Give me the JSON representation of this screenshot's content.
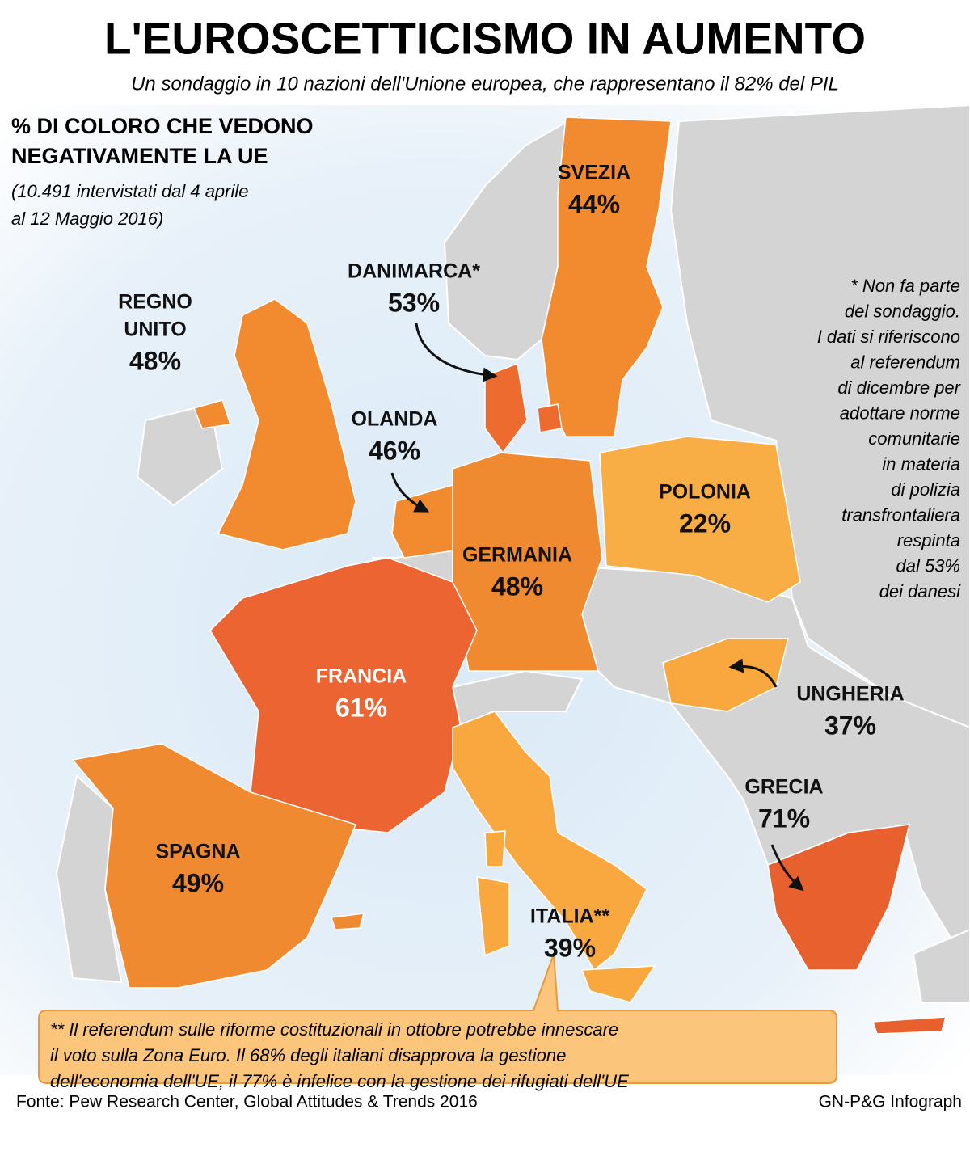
{
  "header": {
    "title": "L'EUROSCETTICISMO IN AUMENTO",
    "subtitle": "Un sondaggio in 10 nazioni dell'Unione europea, che rappresentano il 82% del PIL"
  },
  "legend": {
    "heading_lines": [
      "% DI COLORO CHE VEDONO",
      "NEGATIVAMENTE LA UE"
    ],
    "note_lines": [
      "(10.491 intervistati dal 4 aprile",
      "al 12 Maggio 2016)"
    ]
  },
  "countries": [
    {
      "name_lines": [
        "SVEZIA"
      ],
      "value": "44%",
      "color": "#f28b30"
    },
    {
      "name_lines": [
        "DANIMARCA*"
      ],
      "value": "53%",
      "color": "#ee6b2f"
    },
    {
      "name_lines": [
        "REGNO",
        "UNITO"
      ],
      "value": "48%",
      "color": "#f28b30"
    },
    {
      "name_lines": [
        "OLANDA"
      ],
      "value": "46%",
      "color": "#f28b30"
    },
    {
      "name_lines": [
        "GERMANIA"
      ],
      "value": "48%",
      "color": "#f08a30"
    },
    {
      "name_lines": [
        "POLONIA"
      ],
      "value": "22%",
      "color": "#f9ad45"
    },
    {
      "name_lines": [
        "FRANCIA"
      ],
      "value": "61%",
      "color": "#ec6431"
    },
    {
      "name_lines": [
        "UNGHERIA"
      ],
      "value": "37%",
      "color": "#f8a83e"
    },
    {
      "name_lines": [
        "GRECIA"
      ],
      "value": "71%",
      "color": "#e9602f"
    },
    {
      "name_lines": [
        "SPAGNA"
      ],
      "value": "49%",
      "color": "#f08a30"
    },
    {
      "name_lines": [
        "ITALIA**"
      ],
      "value": "39%",
      "color": "#f8a83e"
    }
  ],
  "notes": {
    "denmark": [
      "* Non fa parte",
      "del sondaggio.",
      "I dati si riferiscono",
      "al referendum",
      "di dicembre per",
      "adottare norme",
      "comunitarie",
      "in materia",
      "di polizia",
      "transfrontaliera",
      "respinta",
      "dal 53%",
      "dei danesi"
    ],
    "italy": [
      "** Il referendum sulle riforme costituzionali in ottobre potrebbe innescare",
      "il voto sulla Zona Euro. Il 68% degli italiani disapprova la gestione",
      "dell'economia dell'UE, il 77% è infelice con la gestione dei rifugiati dell'UE"
    ]
  },
  "footer": {
    "source": "Fonte: Pew Research Center, Global Attitudes & Trends 2016",
    "credit": "GN-P&G Infograph"
  }
}
